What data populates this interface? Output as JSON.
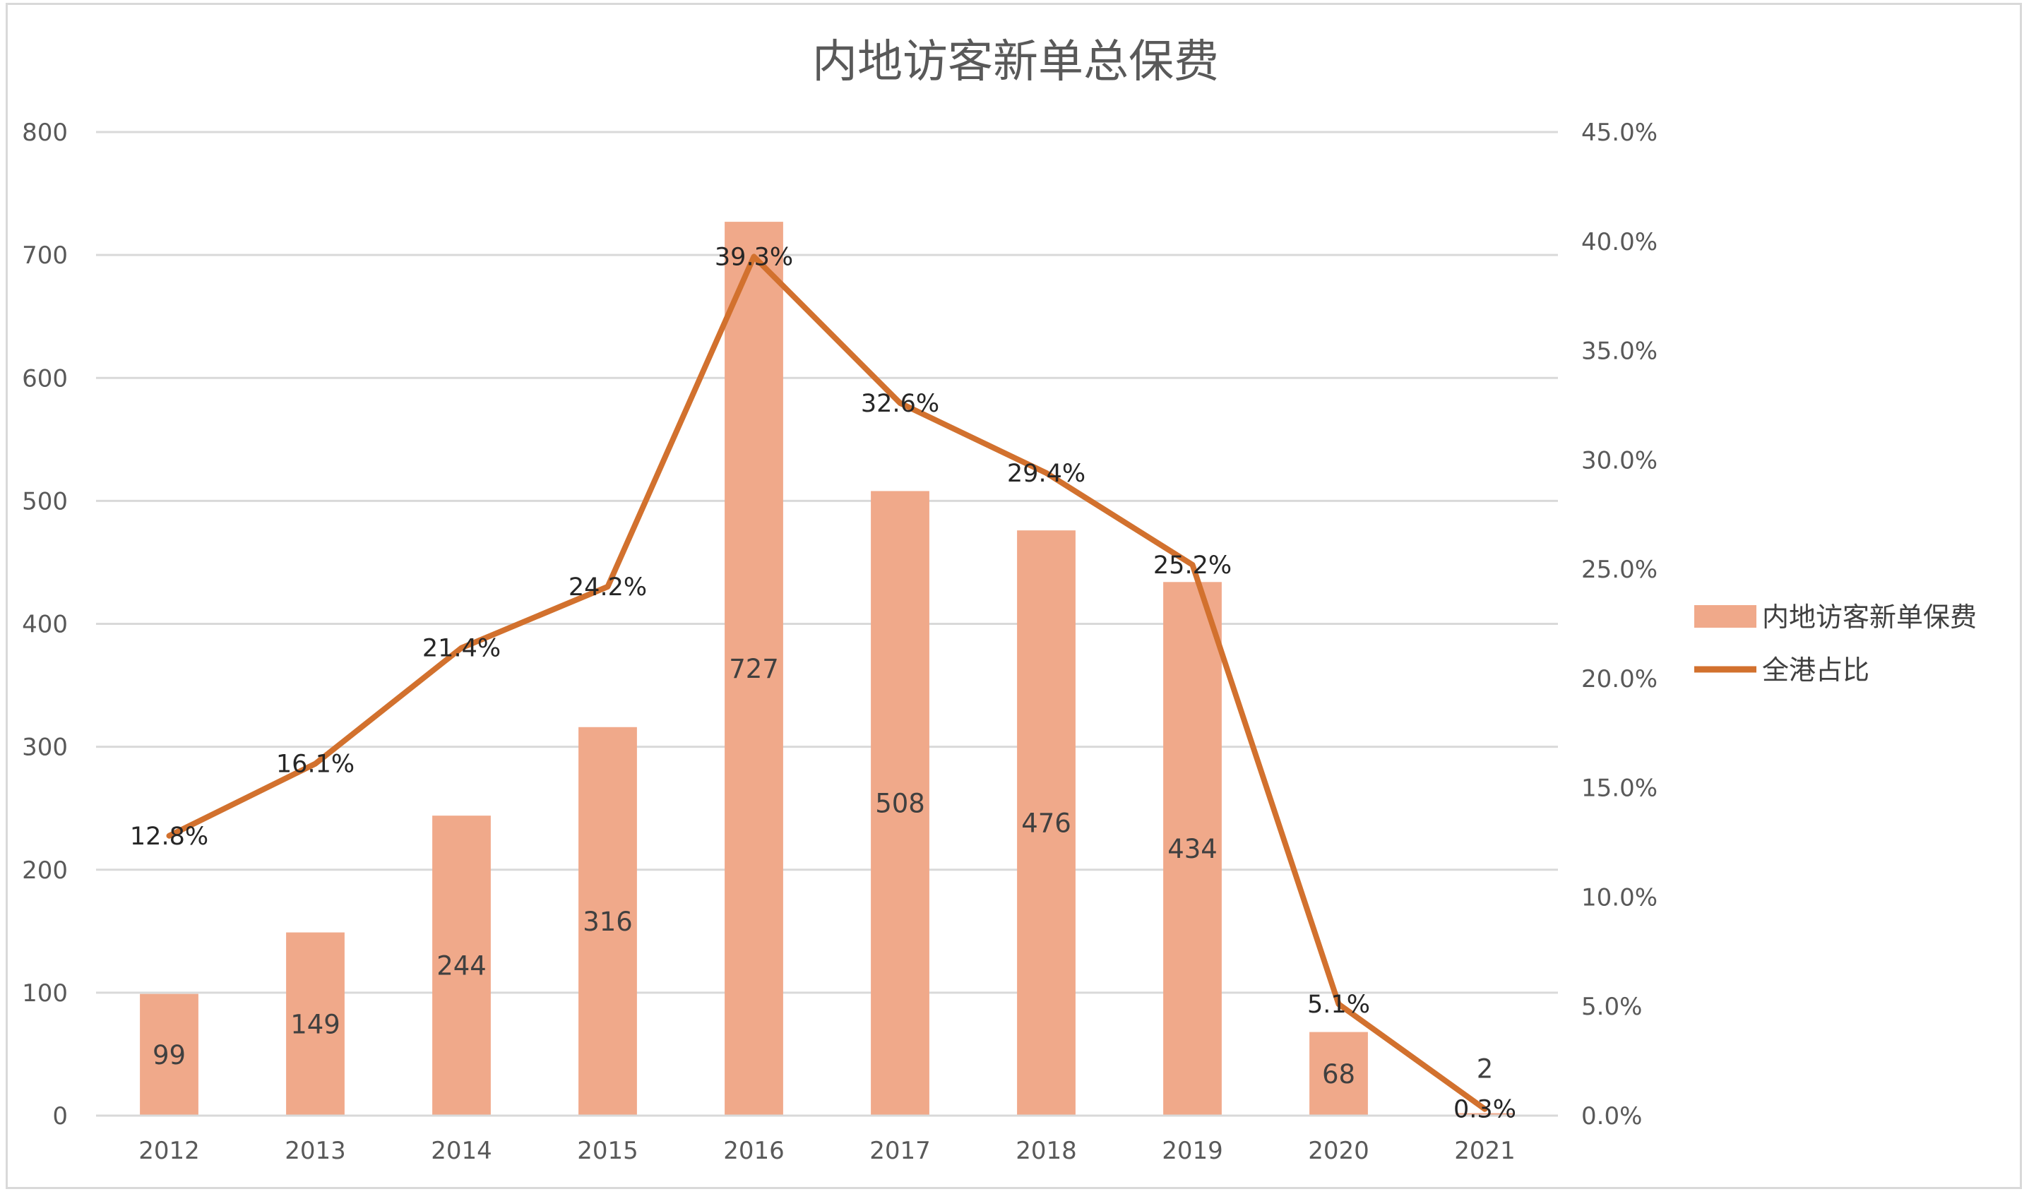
{
  "chart_data": {
    "type": "bar",
    "title": "内地访客新单总保费",
    "categories": [
      "2012",
      "2013",
      "2014",
      "2015",
      "2016",
      "2017",
      "2018",
      "2019",
      "2020",
      "2021"
    ],
    "series": [
      {
        "name": "内地访客新单保费",
        "type": "bar",
        "axis": "left",
        "values": [
          99,
          149,
          244,
          316,
          727,
          508,
          476,
          434,
          68,
          2
        ],
        "labels": [
          "99",
          "149",
          "244",
          "316",
          "727",
          "508",
          "476",
          "434",
          "68",
          "2"
        ],
        "color": "#F0A98A"
      },
      {
        "name": "全港占比",
        "type": "line",
        "axis": "right",
        "values": [
          12.8,
          16.1,
          21.4,
          24.2,
          39.3,
          32.6,
          29.4,
          25.2,
          5.1,
          0.3
        ],
        "labels": [
          "12.8%",
          "16.1%",
          "21.4%",
          "24.2%",
          "39.3%",
          "32.6%",
          "29.4%",
          "25.2%",
          "5.1%",
          "0.3%"
        ],
        "color": "#D2712E"
      }
    ],
    "y_left": {
      "ylim": [
        0,
        800
      ],
      "ticks": [
        "0",
        "100",
        "200",
        "300",
        "400",
        "500",
        "600",
        "700",
        "800"
      ]
    },
    "y_right": {
      "ylim": [
        0,
        45
      ],
      "ticks": [
        "0.0%",
        "5.0%",
        "10.0%",
        "15.0%",
        "20.0%",
        "25.0%",
        "30.0%",
        "35.0%",
        "40.0%",
        "45.0%"
      ]
    },
    "grid": true,
    "legend_position": "right"
  },
  "colors": {
    "bar": "#F0A98A",
    "line": "#D2712E",
    "grid": "#d9d9d9",
    "text": "#595959"
  }
}
